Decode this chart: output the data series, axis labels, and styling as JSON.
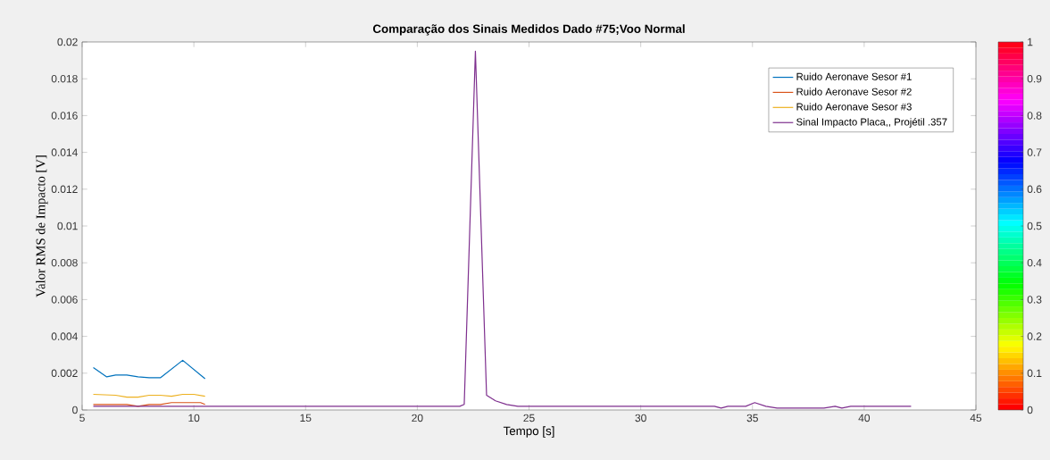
{
  "chart_data": {
    "type": "line",
    "title": "Comparação dos Sinais Medidos Dado #75;Voo Normal",
    "xlabel": "Tempo [s]",
    "ylabel": "Valor RMS de Impacto [V]",
    "xlim": [
      5,
      45
    ],
    "xticks": [
      5,
      10,
      15,
      20,
      25,
      30,
      35,
      40,
      45
    ],
    "ylim": [
      0,
      0.02
    ],
    "yticks": [
      0,
      0.002,
      0.004,
      0.006,
      0.008,
      0.01,
      0.012,
      0.014,
      0.016,
      0.018,
      0.02
    ],
    "clim": [
      0,
      1
    ],
    "cticks": [
      0,
      0.1,
      0.2,
      0.3,
      0.4,
      0.5,
      0.6,
      0.7,
      0.8,
      0.9,
      1
    ],
    "legend": "top right",
    "grid": false,
    "marker": "none",
    "line_style": "solid",
    "series": [
      {
        "name": "Ruido Aeronave Sesor #1",
        "color": "#0072bd",
        "x": [
          5.5,
          6.1,
          6.5,
          7.0,
          7.5,
          8.0,
          8.5,
          9.5,
          10.5
        ],
        "values": [
          0.0023,
          0.0018,
          0.0019,
          0.0019,
          0.0018,
          0.00175,
          0.00175,
          0.0027,
          0.0017
        ]
      },
      {
        "name": "Ruido Aeronave Sesor #2",
        "color": "#d95319",
        "x": [
          5.5,
          7.0,
          7.5,
          8.0,
          8.5,
          9.0,
          9.5,
          10.3,
          10.5
        ],
        "values": [
          0.0003,
          0.0003,
          0.0002,
          0.0003,
          0.0003,
          0.0004,
          0.0004,
          0.0004,
          0.0003
        ]
      },
      {
        "name": "Ruido Aeronave Sesor #3",
        "color": "#edb120",
        "x": [
          5.5,
          6.5,
          7.0,
          7.5,
          8.0,
          8.5,
          9.0,
          9.5,
          10.0,
          10.5
        ],
        "values": [
          0.00085,
          0.0008,
          0.0007,
          0.0007,
          0.0008,
          0.0008,
          0.00075,
          0.00085,
          0.00085,
          0.00075
        ]
      },
      {
        "name": "Sinal Impacto Placa,, Projétil .357",
        "color": "#7e2f8e",
        "x": [
          5.5,
          21.9,
          22.1,
          22.6,
          23.1,
          23.5,
          24.0,
          24.5,
          33.3,
          33.6,
          33.9,
          34.7,
          35.1,
          35.6,
          36.1,
          38.2,
          38.7,
          39.0,
          39.4,
          42.1
        ],
        "values": [
          0.0002,
          0.0002,
          0.0003,
          0.0195,
          0.0008,
          0.0005,
          0.0003,
          0.0002,
          0.0002,
          0.0001,
          0.0002,
          0.0002,
          0.0004,
          0.0002,
          0.0001,
          0.0001,
          0.0002,
          0.0001,
          0.0002,
          0.0002
        ]
      }
    ]
  }
}
